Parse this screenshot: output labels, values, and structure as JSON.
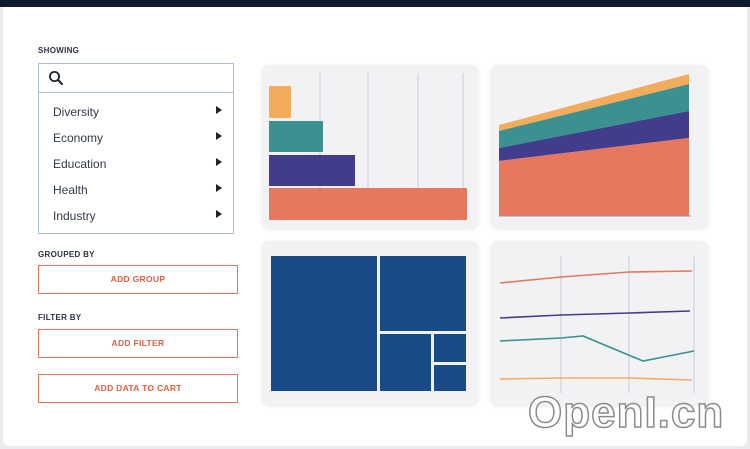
{
  "sidebar": {
    "showing_label": "SHOWING",
    "search": {
      "value": "",
      "placeholder": ""
    },
    "categories": [
      {
        "label": "Diversity"
      },
      {
        "label": "Economy"
      },
      {
        "label": "Education"
      },
      {
        "label": "Health"
      },
      {
        "label": "Industry"
      }
    ],
    "grouped_by_label": "GROUPED BY",
    "add_group_label": "ADD GROUP",
    "filter_by_label": "FILTER BY",
    "add_filter_label": "ADD FILTER",
    "add_to_cart_label": "ADD DATA TO CART"
  },
  "colors": {
    "accent": "#e5765a",
    "orange": "#f2ac5c",
    "teal": "#3a9190",
    "purple": "#413d8c",
    "coral": "#e7775d",
    "navy": "#1a4b86",
    "card_bg": "#f2f2f4"
  },
  "icons": {
    "search": "search-icon",
    "expand": "caret-right-icon"
  },
  "watermark": "OpenI.cn"
}
